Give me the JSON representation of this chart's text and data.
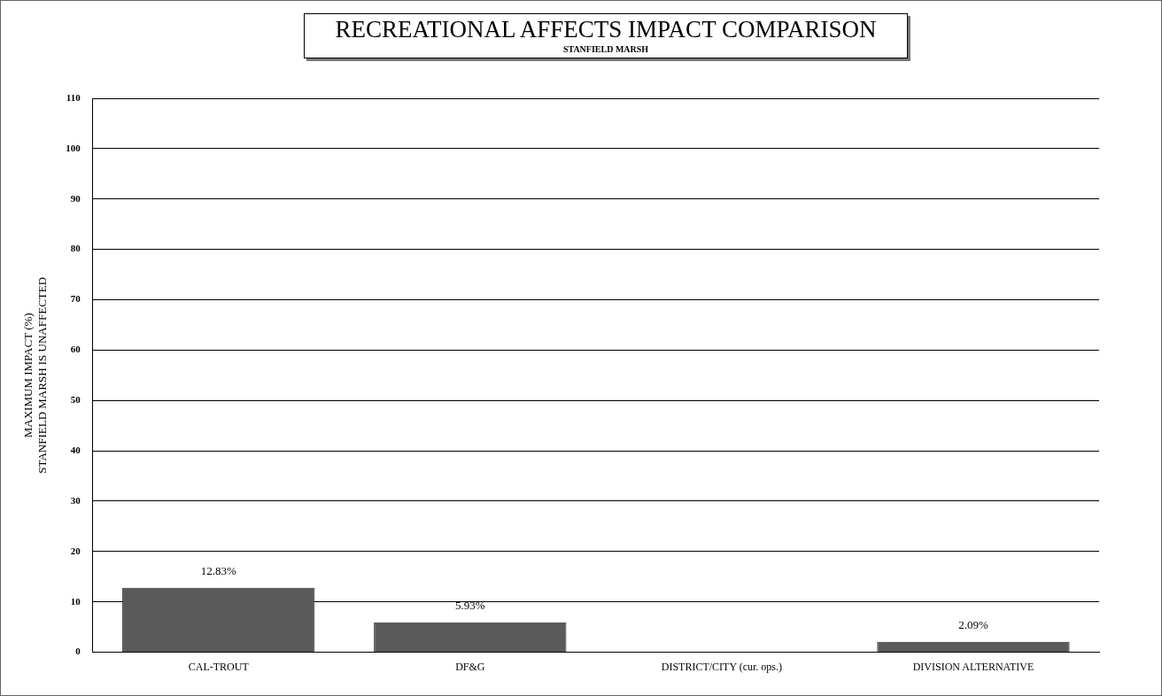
{
  "chart_data": {
    "type": "bar",
    "title": "RECREATIONAL AFFECTS IMPACT COMPARISON",
    "subtitle": "STANFIELD MARSH",
    "ylabel": "MAXIMUM IMPACT (%)\nSTANFIELD MARSH IS UNAFFECTED",
    "categories": [
      "CAL-TROUT",
      "DF&G",
      "DISTRICT/CITY (cur. ops.)",
      "DIVISION ALTERNATIVE"
    ],
    "values": [
      12.83,
      5.93,
      0,
      2.09
    ],
    "value_labels": [
      "12.83%",
      "5.93%",
      null,
      "2.09%"
    ],
    "color": "#5a5a5a",
    "ylim": [
      0,
      110
    ],
    "yticks": [
      0,
      10,
      20,
      30,
      40,
      50,
      60,
      70,
      80,
      90,
      100,
      110
    ],
    "grid": "y",
    "legend": false
  }
}
